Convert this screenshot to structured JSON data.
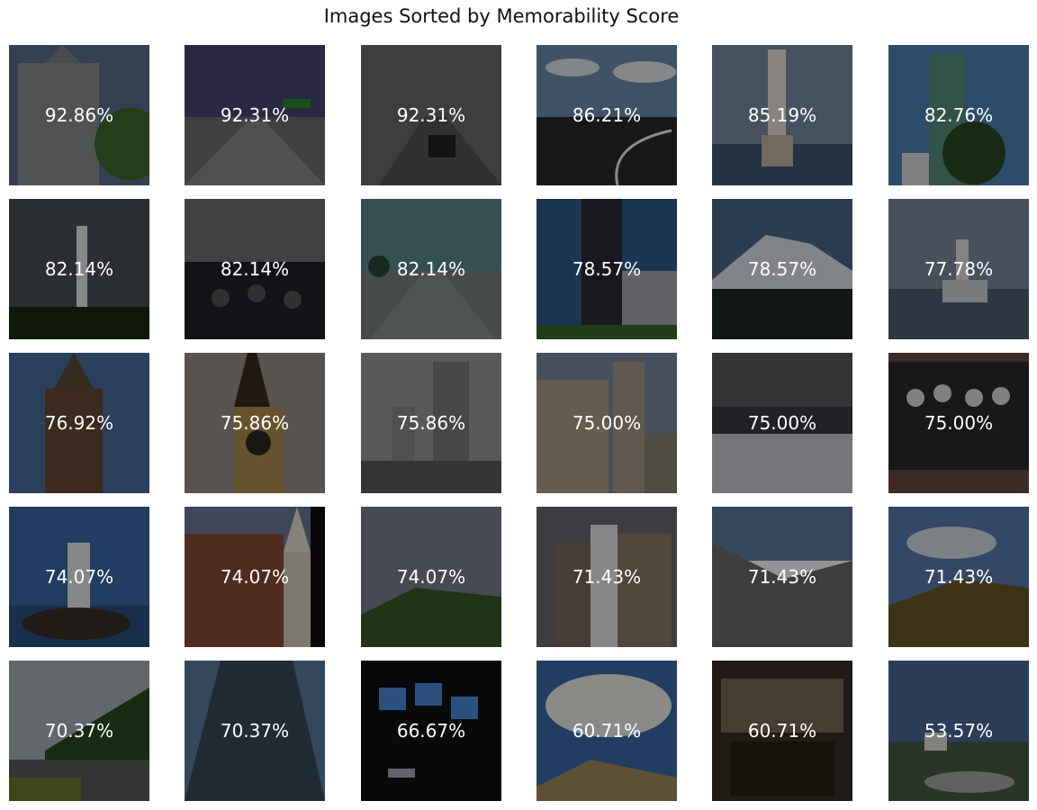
{
  "title": "Images Sorted by Memorability Score",
  "tiles": [
    {
      "score": "92.86%",
      "scene": "church"
    },
    {
      "score": "92.31%",
      "scene": "highway-dusk"
    },
    {
      "score": "92.31%",
      "scene": "highway-gray"
    },
    {
      "score": "86.21%",
      "scene": "highway-curve"
    },
    {
      "score": "85.19%",
      "scene": "lighthouse-water"
    },
    {
      "score": "82.76%",
      "scene": "skyscraper-tree"
    },
    {
      "score": "82.14%",
      "scene": "lighthouse-dark"
    },
    {
      "score": "82.14%",
      "scene": "cockpit"
    },
    {
      "score": "82.14%",
      "scene": "bridge-road"
    },
    {
      "score": "78.57%",
      "scene": "tower-blue"
    },
    {
      "score": "78.57%",
      "scene": "mountain-snow"
    },
    {
      "score": "77.78%",
      "scene": "lighthouse-cliff"
    },
    {
      "score": "76.92%",
      "scene": "tower-brick"
    },
    {
      "score": "75.86%",
      "scene": "clock-tower"
    },
    {
      "score": "75.86%",
      "scene": "skyscrapers-gray"
    },
    {
      "score": "75.00%",
      "scene": "church-street"
    },
    {
      "score": "75.00%",
      "scene": "cockpit-dark"
    },
    {
      "score": "75.00%",
      "scene": "cockpit-dials"
    },
    {
      "score": "74.07%",
      "scene": "lighthouse-rock"
    },
    {
      "score": "74.07%",
      "scene": "church-red"
    },
    {
      "score": "74.07%",
      "scene": "hills-cloudy"
    },
    {
      "score": "71.43%",
      "scene": "city-buildings"
    },
    {
      "score": "71.43%",
      "scene": "mountain-cliff"
    },
    {
      "score": "71.43%",
      "scene": "hills-sunny"
    },
    {
      "score": "70.37%",
      "scene": "road-trees"
    },
    {
      "score": "70.37%",
      "scene": "skyscraper-up"
    },
    {
      "score": "66.67%",
      "scene": "cockpit-screens"
    },
    {
      "score": "60.71%",
      "scene": "desert-clouds"
    },
    {
      "score": "60.71%",
      "scene": "cockpit-fighter"
    },
    {
      "score": "53.57%",
      "scene": "coast-house"
    }
  ]
}
